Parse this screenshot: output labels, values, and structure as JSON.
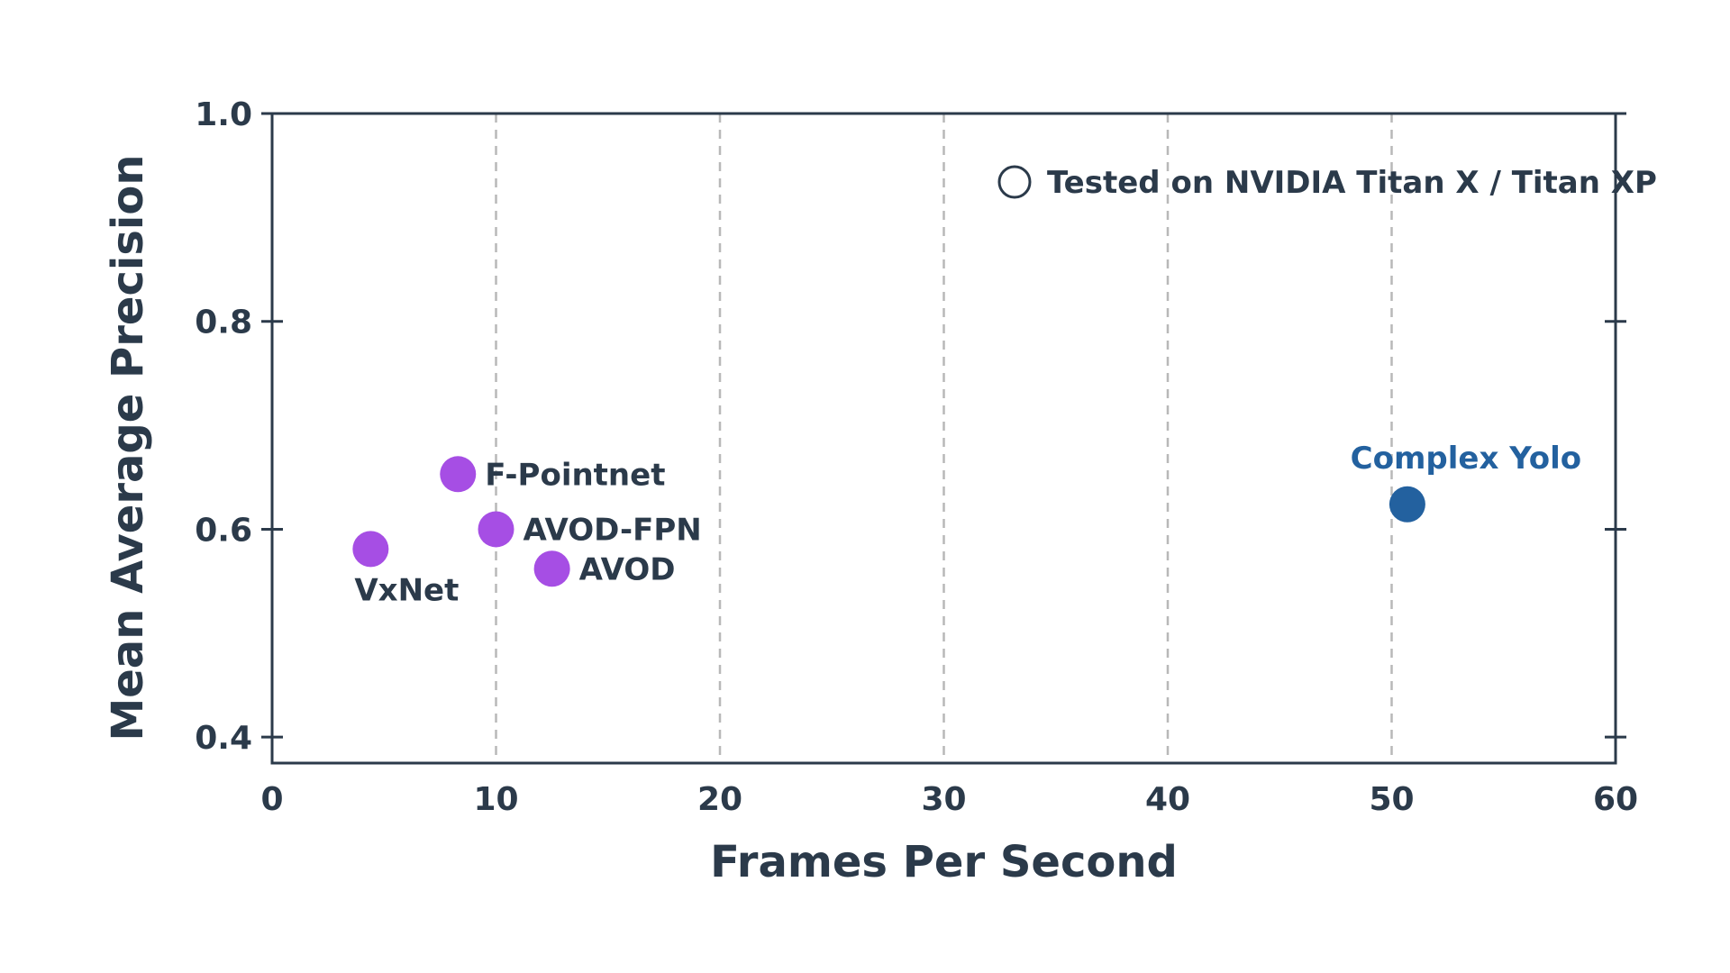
{
  "chart_data": {
    "type": "scatter",
    "title": "",
    "xlabel": "Frames Per Second",
    "ylabel": "Mean Average Precision",
    "xlim": [
      0,
      60
    ],
    "ylim": [
      0.375,
      1.0
    ],
    "x_ticks": [
      0,
      10,
      20,
      30,
      40,
      50,
      60
    ],
    "y_ticks": [
      0.4,
      0.6,
      0.8,
      1.0
    ],
    "x_tick_labels": [
      "0",
      "10",
      "20",
      "30",
      "40",
      "50",
      "60"
    ],
    "y_tick_labels": [
      "0.4",
      "0.6",
      "0.8",
      "1.0"
    ],
    "grid": "vertical dashed",
    "legend": {
      "label": "Tested on NVIDIA Titan X / Titan XP",
      "marker": "hollow-circle",
      "position": "top-right"
    },
    "points": [
      {
        "name": "VxNet",
        "x": 4.4,
        "y": 0.581,
        "color": "#a64ee4",
        "label_position": "below"
      },
      {
        "name": "F-Pointnet",
        "x": 8.3,
        "y": 0.653,
        "color": "#a64ee4",
        "label_position": "right"
      },
      {
        "name": "AVOD-FPN",
        "x": 10.0,
        "y": 0.6,
        "color": "#a64ee4",
        "label_position": "right"
      },
      {
        "name": "AVOD",
        "x": 12.5,
        "y": 0.562,
        "color": "#a64ee4",
        "label_position": "right"
      },
      {
        "name": "Complex Yolo",
        "x": 50.7,
        "y": 0.624,
        "color": "#23619f",
        "label_position": "above"
      }
    ],
    "colors": {
      "axis": "#2b3a4a",
      "grid": "#b8b8b8",
      "other_methods": "#a64ee4",
      "highlight": "#23619f"
    }
  }
}
